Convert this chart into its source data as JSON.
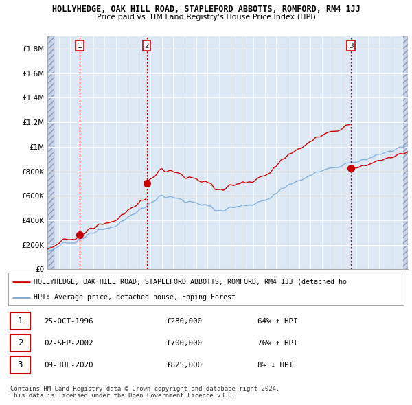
{
  "title": "HOLLYHEDGE, OAK HILL ROAD, STAPLEFORD ABBOTTS, ROMFORD, RM4 1JJ",
  "subtitle": "Price paid vs. HM Land Registry's House Price Index (HPI)",
  "ylim": [
    0,
    1900000
  ],
  "yticks": [
    0,
    200000,
    400000,
    600000,
    800000,
    1000000,
    1200000,
    1400000,
    1600000,
    1800000
  ],
  "ytick_labels": [
    "£0",
    "£200K",
    "£400K",
    "£600K",
    "£800K",
    "£1M",
    "£1.2M",
    "£1.4M",
    "£1.6M",
    "£1.8M"
  ],
  "xlim_start": 1994.0,
  "xlim_end": 2025.5,
  "sale_dates": [
    1996.82,
    2002.67,
    2020.52
  ],
  "sale_prices": [
    280000,
    700000,
    825000
  ],
  "sale_labels": [
    "1",
    "2",
    "3"
  ],
  "vline_color": "#cc0000",
  "property_line_color": "#cc0000",
  "hpi_line_color": "#7aaadd",
  "legend_property": "HOLLYHEDGE, OAK HILL ROAD, STAPLEFORD ABBOTTS, ROMFORD, RM4 1JJ (detached ho",
  "legend_hpi": "HPI: Average price, detached house, Epping Forest",
  "table_rows": [
    {
      "num": "1",
      "date": "25-OCT-1996",
      "price": "£280,000",
      "hpi": "64% ↑ HPI"
    },
    {
      "num": "2",
      "date": "02-SEP-2002",
      "price": "£700,000",
      "hpi": "76% ↑ HPI"
    },
    {
      "num": "3",
      "date": "09-JUL-2020",
      "price": "£825,000",
      "hpi": "8% ↓ HPI"
    }
  ],
  "footer": "Contains HM Land Registry data © Crown copyright and database right 2024.\nThis data is licensed under the Open Government Licence v3.0.",
  "bg_color": "#ffffff",
  "plot_bg_color": "#dde8f5",
  "grid_color": "#ffffff",
  "hatch_bg_color": "#c8d4e8"
}
